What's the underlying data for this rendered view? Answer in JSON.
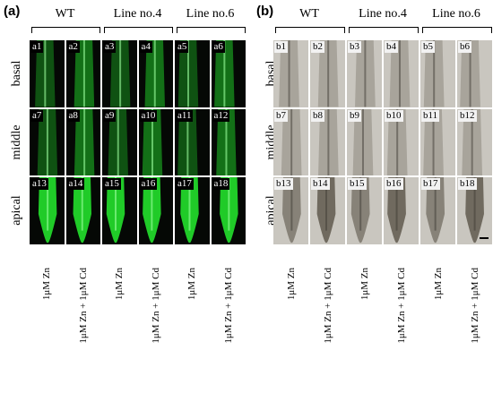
{
  "panels": [
    {
      "letter": "(a)",
      "kind": "fluorescence",
      "genotypes": [
        "WT",
        "Line no.4",
        "Line no.6"
      ],
      "rows": [
        "basal",
        "middle",
        "apical"
      ],
      "cells": [
        [
          "a1",
          "a2",
          "a3",
          "a4",
          "a5",
          "a6"
        ],
        [
          "a7",
          "a8",
          "a9",
          "a10",
          "a11",
          "a12"
        ],
        [
          "a13",
          "a14",
          "a15",
          "a16",
          "a17",
          "a18"
        ]
      ],
      "treatments": [
        "1μM Zn",
        "1μM Zn + 1μM Cd",
        "1μM Zn",
        "1μM Zn + 1μM Cd",
        "1μM Zn",
        "1μM Zn + 1μM Cd"
      ]
    },
    {
      "letter": "(b)",
      "kind": "brightfield",
      "genotypes": [
        "WT",
        "Line no.4",
        "Line no.6"
      ],
      "rows": [
        "basal",
        "middle",
        "apical"
      ],
      "cells": [
        [
          "b1",
          "b2",
          "b3",
          "b4",
          "b5",
          "b6"
        ],
        [
          "b7",
          "b8",
          "b9",
          "b10",
          "b11",
          "b12"
        ],
        [
          "b13",
          "b14",
          "b15",
          "b16",
          "b17",
          "b18"
        ]
      ],
      "treatments": [
        "1μM Zn",
        "1μM Zn + 1μM Cd",
        "1μM Zn",
        "1μM Zn + 1μM Cd",
        "1μM Zn",
        "1μM Zn + 1μM Cd"
      ]
    }
  ],
  "colors": {
    "fluor": "#22d62a",
    "fluor_bg": "#050805",
    "bright_bg": "#c9c6bf",
    "bright_root": "#6b655a"
  }
}
